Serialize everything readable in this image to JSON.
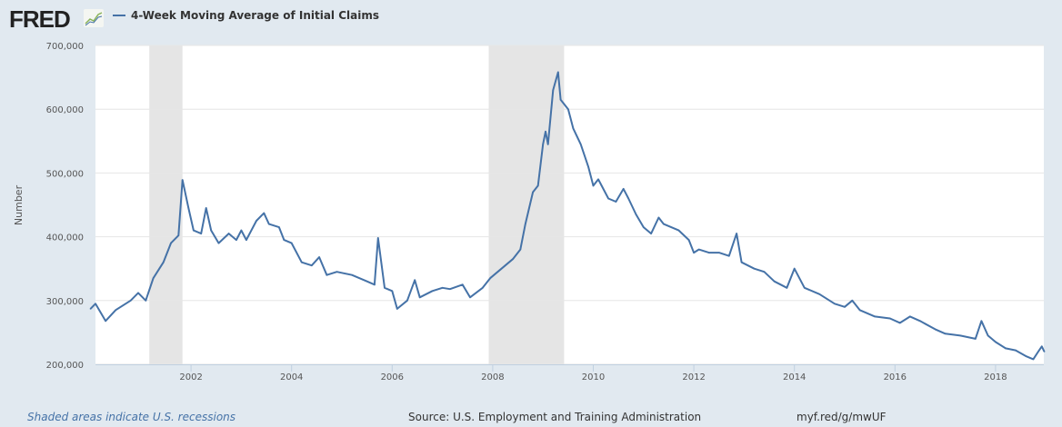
{
  "logo": "FRED",
  "footer": {
    "note": "Shaded areas indicate U.S. recessions",
    "source": "Source: U.S. Employment and Training Administration",
    "link": "myf.red/g/mwUF"
  },
  "chart_data": {
    "type": "line",
    "title": "4-Week Moving Average of Initial Claims",
    "xlabel": "",
    "ylabel": "Number",
    "xlim": [
      2000.0,
      2018.97
    ],
    "ylim": [
      200000,
      700000
    ],
    "yticks": [
      200000,
      300000,
      400000,
      500000,
      600000,
      700000
    ],
    "ytick_labels": [
      "200,000",
      "300,000",
      "400,000",
      "500,000",
      "600,000",
      "700,000"
    ],
    "xticks": [
      2002,
      2004,
      2006,
      2008,
      2010,
      2012,
      2014,
      2016,
      2018
    ],
    "xtick_labels": [
      "2002",
      "2004",
      "2006",
      "2008",
      "2010",
      "2012",
      "2014",
      "2016",
      "2018"
    ],
    "grid": true,
    "legend": "top-left",
    "color": "#4572a7",
    "recessions": [
      [
        2001.17,
        2001.83
      ],
      [
        2007.92,
        2009.42
      ]
    ],
    "series": [
      {
        "name": "4-Week Moving Average of Initial Claims",
        "x": [
          2000.0,
          2000.1,
          2000.3,
          2000.5,
          2000.8,
          2000.95,
          2001.1,
          2001.25,
          2001.45,
          2001.6,
          2001.75,
          2001.83,
          2001.95,
          2002.05,
          2002.2,
          2002.3,
          2002.4,
          2002.55,
          2002.75,
          2002.9,
          2003.0,
          2003.1,
          2003.3,
          2003.45,
          2003.55,
          2003.75,
          2003.85,
          2004.0,
          2004.2,
          2004.4,
          2004.55,
          2004.7,
          2004.9,
          2005.2,
          2005.5,
          2005.65,
          2005.72,
          2005.85,
          2006.0,
          2006.1,
          2006.3,
          2006.45,
          2006.55,
          2006.8,
          2007.0,
          2007.15,
          2007.4,
          2007.55,
          2007.8,
          2007.95,
          2008.1,
          2008.25,
          2008.4,
          2008.55,
          2008.65,
          2008.8,
          2008.9,
          2009.0,
          2009.05,
          2009.1,
          2009.2,
          2009.3,
          2009.35,
          2009.5,
          2009.6,
          2009.75,
          2009.9,
          2010.0,
          2010.1,
          2010.3,
          2010.45,
          2010.6,
          2010.7,
          2010.85,
          2011.0,
          2011.15,
          2011.3,
          2011.4,
          2011.7,
          2011.9,
          2012.0,
          2012.1,
          2012.3,
          2012.5,
          2012.7,
          2012.85,
          2012.95,
          2013.2,
          2013.4,
          2013.6,
          2013.85,
          2014.0,
          2014.2,
          2014.5,
          2014.8,
          2015.0,
          2015.15,
          2015.3,
          2015.6,
          2015.9,
          2016.1,
          2016.3,
          2016.5,
          2016.8,
          2017.0,
          2017.3,
          2017.6,
          2017.72,
          2017.85,
          2018.0,
          2018.2,
          2018.4,
          2018.6,
          2018.75,
          2018.85,
          2018.92,
          2018.97
        ],
        "y": [
          287000,
          295000,
          268000,
          285000,
          300000,
          312000,
          300000,
          335000,
          360000,
          390000,
          402000,
          489000,
          445000,
          410000,
          405000,
          445000,
          410000,
          390000,
          405000,
          395000,
          410000,
          395000,
          425000,
          437000,
          420000,
          415000,
          395000,
          390000,
          360000,
          355000,
          368000,
          340000,
          345000,
          340000,
          330000,
          325000,
          398000,
          320000,
          315000,
          287000,
          300000,
          332000,
          305000,
          315000,
          320000,
          318000,
          325000,
          305000,
          320000,
          335000,
          345000,
          355000,
          365000,
          380000,
          420000,
          470000,
          480000,
          545000,
          565000,
          545000,
          630000,
          658000,
          615000,
          600000,
          570000,
          545000,
          510000,
          480000,
          490000,
          460000,
          455000,
          475000,
          460000,
          435000,
          415000,
          405000,
          430000,
          420000,
          410000,
          395000,
          375000,
          380000,
          375000,
          375000,
          370000,
          405000,
          360000,
          350000,
          345000,
          330000,
          320000,
          350000,
          320000,
          310000,
          295000,
          290000,
          300000,
          285000,
          275000,
          272000,
          265000,
          275000,
          268000,
          255000,
          248000,
          245000,
          240000,
          268000,
          245000,
          235000,
          225000,
          222000,
          213000,
          208000,
          220000,
          228000,
          220000
        ]
      }
    ]
  }
}
